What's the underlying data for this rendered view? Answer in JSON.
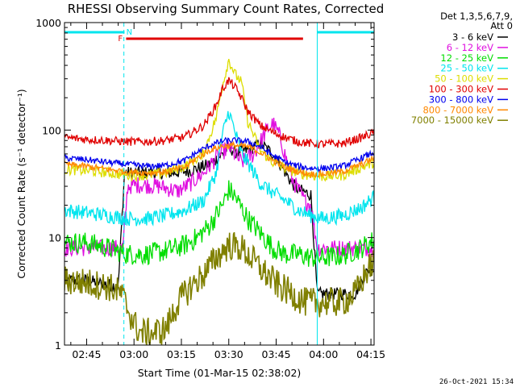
{
  "chart_data": {
    "type": "line",
    "title": "RHESSI Observing Summary Count Rates, Corrected",
    "xlabel": "Start Time (01-Mar-15 02:38:02)",
    "ylabel": "Corrected Count Rate (s⁻¹ detector⁻¹)",
    "yscale": "log",
    "ylim": [
      1,
      1000
    ],
    "xlim_minutes": [
      38.0,
      136.0
    ],
    "x_tick_labels": [
      "02:45",
      "03:00",
      "03:15",
      "03:30",
      "03:45",
      "04:00",
      "04:15"
    ],
    "x_tick_minutes": [
      45,
      60,
      75,
      90,
      105,
      120,
      135
    ],
    "y_tick_labels": [
      "1",
      "10",
      "100",
      "1000"
    ],
    "y_tick_values": [
      1,
      10,
      100,
      1000
    ],
    "legend_header": [
      "Det 1,3,5,6,7,9,",
      "Att 0"
    ],
    "legend_position": "outside-right",
    "footer": "26-Oct-2021 15:34",
    "attenuator_markers": {
      "night_minutes": [
        38.0,
        57.0
      ],
      "day_minutes": [
        118.0,
        136.0
      ],
      "saa_start": 56.8,
      "saa_end": 118.0,
      "flare_minutes": [
        57.5,
        113.5
      ],
      "F_label": "F",
      "N_label": "N",
      "night_color": "#00e5ee",
      "flare_color": "#e00000"
    },
    "series": [
      {
        "name": "3 - 6 keV",
        "color": "#000000",
        "x": [
          38,
          45,
          55,
          57,
          60,
          66,
          72,
          78,
          84,
          88,
          90,
          92,
          96,
          100,
          104,
          106,
          108,
          110,
          112,
          116,
          118,
          122,
          126,
          130,
          134,
          136
        ],
        "y": [
          4,
          4,
          3.5,
          40,
          40,
          40,
          40,
          42,
          48,
          60,
          70,
          62,
          65,
          75,
          60,
          50,
          40,
          32,
          28,
          25,
          3,
          3,
          3,
          3,
          5,
          5
        ]
      },
      {
        "name": "6 - 12 keV",
        "color": "#e010e0",
        "x": [
          38,
          45,
          55,
          56.5,
          58,
          62,
          68,
          74,
          78,
          82,
          86,
          90,
          94,
          98,
          102,
          104,
          106,
          110,
          114,
          116,
          118,
          122,
          128,
          132,
          136
        ],
        "y": [
          8,
          8,
          8,
          8,
          30,
          31,
          30,
          27,
          32,
          40,
          55,
          70,
          50,
          60,
          100,
          115,
          90,
          35,
          22,
          20,
          8,
          8,
          8,
          8,
          8
        ]
      },
      {
        "name": "12 - 25 keV",
        "color": "#00dd00",
        "x": [
          38,
          45,
          52,
          58,
          64,
          70,
          76,
          80,
          84,
          88,
          90,
          92,
          96,
          100,
          104,
          108,
          112,
          116,
          120,
          126,
          132,
          136
        ],
        "y": [
          9,
          9,
          8,
          7,
          7,
          7.5,
          8.5,
          10,
          13,
          20,
          28,
          24,
          15,
          11,
          8,
          7,
          7,
          6.5,
          6.5,
          6.8,
          8,
          9.5
        ]
      },
      {
        "name": "25 - 50 keV",
        "color": "#00e5ee",
        "x": [
          38,
          45,
          52,
          58,
          64,
          70,
          76,
          82,
          86,
          88,
          90,
          92,
          94,
          96,
          100,
          104,
          108,
          112,
          116,
          120,
          126,
          132,
          136
        ],
        "y": [
          18,
          17,
          16,
          15,
          15,
          16,
          18,
          22,
          40,
          90,
          150,
          95,
          60,
          50,
          32,
          26,
          22,
          18,
          16,
          15,
          16,
          19,
          24
        ]
      },
      {
        "name": "50 - 100 keV",
        "color": "#dddd00",
        "x": [
          38,
          45,
          52,
          58,
          64,
          70,
          76,
          82,
          86,
          88,
          90,
          92,
          94,
          96,
          100,
          104,
          108,
          112,
          116,
          120,
          126,
          132,
          136
        ],
        "y": [
          43,
          42,
          40,
          38,
          38,
          40,
          46,
          60,
          130,
          260,
          450,
          330,
          280,
          120,
          65,
          50,
          44,
          40,
          38,
          37,
          38,
          45,
          50
        ]
      },
      {
        "name": "100 - 300 keV",
        "color": "#e00000",
        "x": [
          38,
          45,
          52,
          58,
          64,
          70,
          76,
          82,
          86,
          88,
          90,
          92,
          94,
          96,
          100,
          104,
          108,
          112,
          116,
          120,
          126,
          132,
          136
        ],
        "y": [
          85,
          82,
          80,
          78,
          78,
          80,
          86,
          110,
          170,
          240,
          290,
          250,
          200,
          150,
          110,
          95,
          85,
          78,
          75,
          74,
          75,
          85,
          95
        ]
      },
      {
        "name": "300 - 800 keV",
        "color": "#0000ee",
        "x": [
          38,
          45,
          52,
          58,
          64,
          70,
          76,
          80,
          84,
          88,
          92,
          96,
          100,
          104,
          108,
          112,
          116,
          120,
          126,
          132,
          136
        ],
        "y": [
          55,
          53,
          50,
          48,
          46,
          47,
          52,
          62,
          72,
          79,
          80,
          78,
          70,
          58,
          50,
          46,
          44,
          44,
          46,
          55,
          62
        ]
      },
      {
        "name": "800 - 7000 keV",
        "color": "#ff8800",
        "x": [
          38,
          45,
          52,
          58,
          64,
          70,
          76,
          80,
          84,
          88,
          92,
          96,
          100,
          104,
          108,
          112,
          116,
          120,
          126,
          132,
          136
        ],
        "y": [
          48,
          46,
          43,
          41,
          40,
          41,
          45,
          55,
          65,
          71,
          72,
          70,
          62,
          52,
          45,
          41,
          39,
          39,
          41,
          48,
          55
        ]
      },
      {
        "name": "7000 - 15000 keV",
        "color": "#808000",
        "x": [
          38,
          45,
          52,
          56,
          60,
          62,
          66,
          70,
          74,
          78,
          82,
          86,
          90,
          94,
          98,
          102,
          106,
          110,
          114,
          118,
          122,
          126,
          130,
          134,
          136
        ],
        "y": [
          4,
          3.8,
          3.5,
          3,
          1.6,
          1.3,
          1.3,
          1.4,
          2.5,
          3.5,
          4.5,
          6.5,
          8.5,
          8,
          6,
          4.5,
          3.5,
          3,
          2.5,
          2.5,
          2.5,
          2.5,
          3,
          5,
          6
        ]
      }
    ]
  }
}
